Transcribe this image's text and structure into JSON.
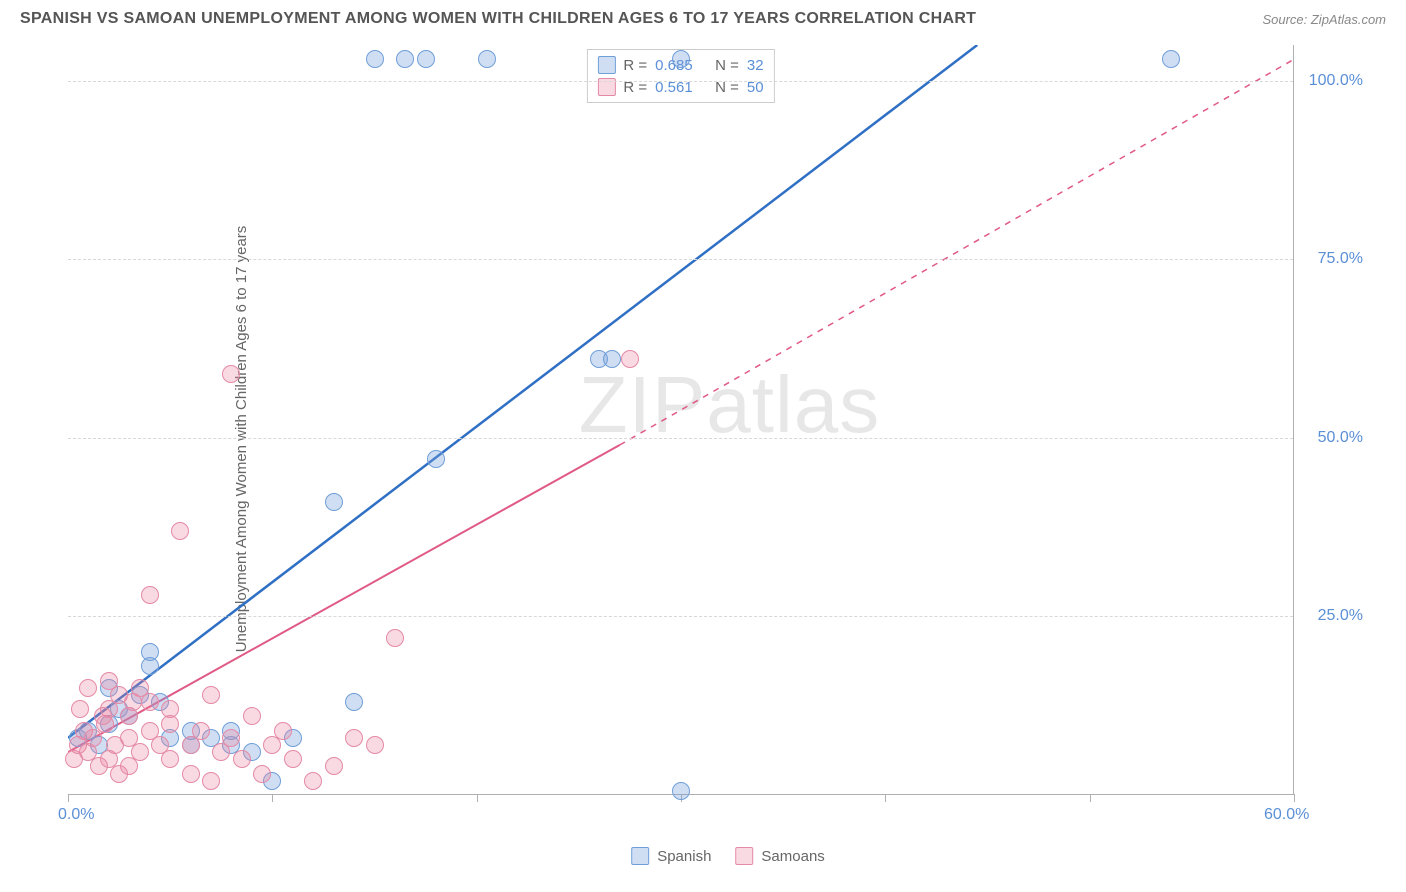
{
  "header": {
    "title": "SPANISH VS SAMOAN UNEMPLOYMENT AMONG WOMEN WITH CHILDREN AGES 6 TO 17 YEARS CORRELATION CHART",
    "source_label": "Source: ZipAtlas.com"
  },
  "chart": {
    "type": "scatter",
    "y_axis_title": "Unemployment Among Women with Children Ages 6 to 17 years",
    "xlim": [
      0,
      60
    ],
    "ylim": [
      0,
      105
    ],
    "x_ticks": [
      0,
      10,
      20,
      30,
      40,
      50,
      60
    ],
    "x_tick_labels": {
      "0": "0.0%",
      "60": "60.0%"
    },
    "y_ticks": [
      25,
      50,
      75,
      100
    ],
    "y_tick_labels": {
      "25": "25.0%",
      "50": "50.0%",
      "75": "75.0%",
      "100": "100.0%"
    },
    "background_color": "#ffffff",
    "grid_color": "#d8d8d8",
    "axis_color": "#b0b0b0",
    "axis_label_color": "#5b8fd6",
    "watermark": "ZIPatlas",
    "marker_radius": 9,
    "series": [
      {
        "name": "Spanish",
        "color_fill": "rgba(120,160,220,0.35)",
        "color_stroke": "#6f9fd8",
        "trend": {
          "x1": 0,
          "y1": 8,
          "x2": 44.5,
          "y2": 105,
          "stroke": "#2f6fc4",
          "width": 2.5,
          "dash": "none",
          "ext_x1": 44.5,
          "ext_y1": 105,
          "ext_x2": 44.5,
          "ext_y2": 105
        },
        "R": "0.685",
        "N": "32",
        "points": [
          [
            0.5,
            8
          ],
          [
            1,
            9
          ],
          [
            1.5,
            7
          ],
          [
            2,
            10
          ],
          [
            2.5,
            12
          ],
          [
            3,
            11
          ],
          [
            3.5,
            14
          ],
          [
            4,
            18
          ],
          [
            4.5,
            13
          ],
          [
            5,
            8
          ],
          [
            6,
            7
          ],
          [
            7,
            8
          ],
          [
            8,
            7
          ],
          [
            9,
            6
          ],
          [
            10,
            2
          ],
          [
            11,
            8
          ],
          [
            13,
            41
          ],
          [
            14,
            13
          ],
          [
            15,
            103
          ],
          [
            16.5,
            103
          ],
          [
            17.5,
            103
          ],
          [
            20.5,
            103
          ],
          [
            18,
            47
          ],
          [
            30,
            103
          ],
          [
            26,
            61
          ],
          [
            26.6,
            61
          ],
          [
            30,
            0.5
          ],
          [
            54,
            103
          ],
          [
            4,
            20
          ],
          [
            6,
            9
          ],
          [
            8,
            9
          ],
          [
            2,
            15
          ]
        ]
      },
      {
        "name": "Samoans",
        "color_fill": "rgba(235,130,160,0.30)",
        "color_stroke": "#e48aa6",
        "trend": {
          "x1": 0,
          "y1": 6,
          "x2": 27,
          "y2": 49,
          "stroke": "#e05a85",
          "width": 2,
          "dash": "none",
          "ext_x1": 27,
          "ext_y1": 49,
          "ext_x2": 60,
          "ext_y2": 103
        },
        "R": "0.561",
        "N": "50",
        "points": [
          [
            0.3,
            5
          ],
          [
            0.5,
            7
          ],
          [
            0.8,
            9
          ],
          [
            1,
            6
          ],
          [
            1.2,
            8
          ],
          [
            1.5,
            4
          ],
          [
            1.8,
            10
          ],
          [
            2,
            12
          ],
          [
            2,
            5
          ],
          [
            2.5,
            3
          ],
          [
            2.5,
            14
          ],
          [
            3,
            8
          ],
          [
            3,
            11
          ],
          [
            3.5,
            6
          ],
          [
            3.5,
            15
          ],
          [
            4,
            9
          ],
          [
            4,
            28
          ],
          [
            4.5,
            7
          ],
          [
            5,
            5
          ],
          [
            5,
            12
          ],
          [
            5.5,
            37
          ],
          [
            6,
            3
          ],
          [
            6,
            7
          ],
          [
            6.5,
            9
          ],
          [
            7,
            2
          ],
          [
            7,
            14
          ],
          [
            7.5,
            6
          ],
          [
            8,
            8
          ],
          [
            8,
            59
          ],
          [
            8.5,
            5
          ],
          [
            9,
            11
          ],
          [
            9.5,
            3
          ],
          [
            10,
            7
          ],
          [
            10.5,
            9
          ],
          [
            11,
            5
          ],
          [
            12,
            2
          ],
          [
            13,
            4
          ],
          [
            14,
            8
          ],
          [
            15,
            7
          ],
          [
            16,
            22
          ],
          [
            27.5,
            61
          ],
          [
            1,
            15
          ],
          [
            2,
            16
          ],
          [
            3,
            4
          ],
          [
            4,
            13
          ],
          [
            5,
            10
          ],
          [
            2.3,
            7
          ],
          [
            1.7,
            11
          ],
          [
            0.6,
            12
          ],
          [
            3.2,
            13
          ]
        ]
      }
    ],
    "legend_top_labels": {
      "R": "R =",
      "N": "N ="
    },
    "legend_bottom": [
      "Spanish",
      "Samoans"
    ]
  }
}
